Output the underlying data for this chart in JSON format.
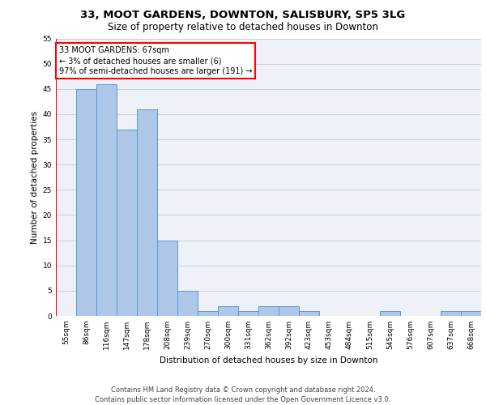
{
  "title1": "33, MOOT GARDENS, DOWNTON, SALISBURY, SP5 3LG",
  "title2": "Size of property relative to detached houses in Downton",
  "xlabel": "Distribution of detached houses by size in Downton",
  "ylabel": "Number of detached properties",
  "categories": [
    "55sqm",
    "86sqm",
    "116sqm",
    "147sqm",
    "178sqm",
    "208sqm",
    "239sqm",
    "270sqm",
    "300sqm",
    "331sqm",
    "362sqm",
    "392sqm",
    "423sqm",
    "453sqm",
    "484sqm",
    "515sqm",
    "545sqm",
    "576sqm",
    "607sqm",
    "637sqm",
    "668sqm"
  ],
  "values": [
    0,
    45,
    46,
    37,
    41,
    15,
    5,
    1,
    2,
    1,
    2,
    2,
    1,
    0,
    0,
    0,
    1,
    0,
    0,
    1,
    1
  ],
  "bar_color": "#aec6e8",
  "bar_edge_color": "#5b9bd5",
  "annotation_text": "33 MOOT GARDENS: 67sqm\n← 3% of detached houses are smaller (6)\n97% of semi-detached houses are larger (191) →",
  "annotation_box_color": "white",
  "annotation_box_edge": "red",
  "vline_color": "red",
  "ylim": [
    0,
    55
  ],
  "yticks": [
    0,
    5,
    10,
    15,
    20,
    25,
    30,
    35,
    40,
    45,
    50,
    55
  ],
  "background_color": "#eef2f8",
  "grid_color": "#c8d0de",
  "footer1": "Contains HM Land Registry data © Crown copyright and database right 2024.",
  "footer2": "Contains public sector information licensed under the Open Government Licence v3.0.",
  "title_fontsize": 9.5,
  "subtitle_fontsize": 8.5,
  "axis_label_fontsize": 7.5,
  "tick_fontsize": 6.5,
  "annotation_fontsize": 7,
  "footer_fontsize": 6
}
